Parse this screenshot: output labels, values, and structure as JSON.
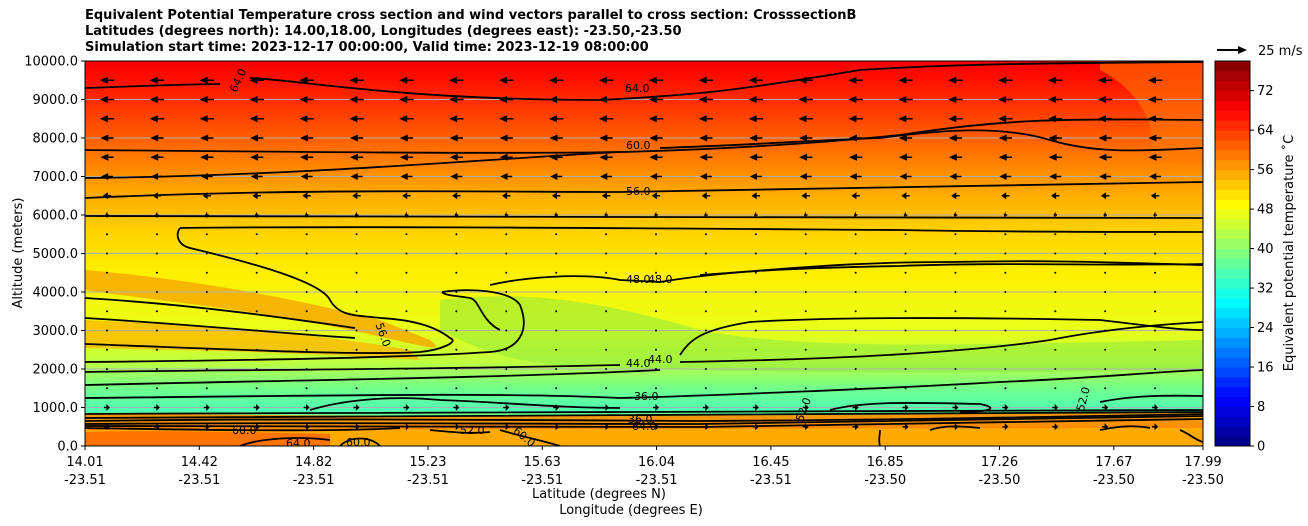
{
  "title_lines": [
    "Equivalent Potential Temperature cross section and wind vectors parallel to cross section: CrosssectionB",
    "Latitudes (degrees north): 14.00,18.00, Longitudes (degrees east): -23.50,-23.50",
    "Simulation start time: 2023-12-17 00:00:00, Valid time: 2023-12-19 08:00:00"
  ],
  "quiver_key_label": "25 m/s",
  "chart_data": {
    "type": "heatmap",
    "ylabel": "Altitude (meters)",
    "xlabel_lat": "Latitude (degrees N)",
    "xlabel_lon": "Longitude (degrees E)",
    "colorbar_label": "Equivalent potential temperature ˚C",
    "ylim": [
      0,
      10000
    ],
    "yticks": [
      "0.0",
      "1000.0",
      "2000.0",
      "3000.0",
      "4000.0",
      "5000.0",
      "6000.0",
      "7000.0",
      "8000.0",
      "9000.0",
      "10000.0"
    ],
    "xticks": [
      {
        "lat": "14.01",
        "lon": "-23.51"
      },
      {
        "lat": "14.42",
        "lon": "-23.51"
      },
      {
        "lat": "14.82",
        "lon": "-23.51"
      },
      {
        "lat": "15.23",
        "lon": "-23.51"
      },
      {
        "lat": "15.63",
        "lon": "-23.51"
      },
      {
        "lat": "16.04",
        "lon": "-23.51"
      },
      {
        "lat": "16.45",
        "lon": "-23.51"
      },
      {
        "lat": "16.85",
        "lon": "-23.50"
      },
      {
        "lat": "17.26",
        "lon": "-23.50"
      },
      {
        "lat": "17.67",
        "lon": "-23.50"
      },
      {
        "lat": "17.99",
        "lon": "-23.50"
      }
    ],
    "colorbar_range": [
      0,
      78
    ],
    "colorbar_ticks": [
      "0",
      "8",
      "16",
      "24",
      "32",
      "40",
      "48",
      "56",
      "64",
      "72"
    ],
    "grid": true,
    "contour_labels": [
      "64.0",
      "60.0",
      "56.0",
      "48.0",
      "44.0",
      "36.0",
      "64.0",
      "60.0",
      "60.0",
      "56.0",
      "48.0",
      "44.0",
      "36.0",
      "64.0",
      "60.0",
      "52.0",
      "52.0",
      "44.0"
    ],
    "wind_profile": [
      {
        "z": 9500,
        "u": -12
      },
      {
        "z": 9000,
        "u": -12
      },
      {
        "z": 8500,
        "u": -12
      },
      {
        "z": 8000,
        "u": -11
      },
      {
        "z": 7500,
        "u": -11
      },
      {
        "z": 7000,
        "u": -10
      },
      {
        "z": 6500,
        "u": -7
      },
      {
        "z": 6000,
        "u": -3
      },
      {
        "z": 5500,
        "u": -1
      },
      {
        "z": 5000,
        "u": -0.5
      },
      {
        "z": 4500,
        "u": -0.5
      },
      {
        "z": 4000,
        "u": -0.5
      },
      {
        "z": 3500,
        "u": -0.5
      },
      {
        "z": 3000,
        "u": -1
      },
      {
        "z": 2500,
        "u": -0.5
      },
      {
        "z": 2000,
        "u": -0.5
      },
      {
        "z": 1500,
        "u": 2
      },
      {
        "z": 1000,
        "u": 5
      },
      {
        "z": 500,
        "u": 5
      }
    ],
    "theta_profile": [
      {
        "z": 0,
        "v": 62
      },
      {
        "z": 400,
        "v": 62
      },
      {
        "z": 650,
        "v": 42
      },
      {
        "z": 900,
        "v": 35
      },
      {
        "z": 1500,
        "v": 38
      },
      {
        "z": 2200,
        "v": 44
      },
      {
        "z": 3000,
        "v": 47
      },
      {
        "z": 4500,
        "v": 50
      },
      {
        "z": 5500,
        "v": 52
      },
      {
        "z": 6500,
        "v": 55
      },
      {
        "z": 7500,
        "v": 59
      },
      {
        "z": 8500,
        "v": 63
      },
      {
        "z": 9500,
        "v": 67
      },
      {
        "z": 10000,
        "v": 69
      }
    ]
  }
}
